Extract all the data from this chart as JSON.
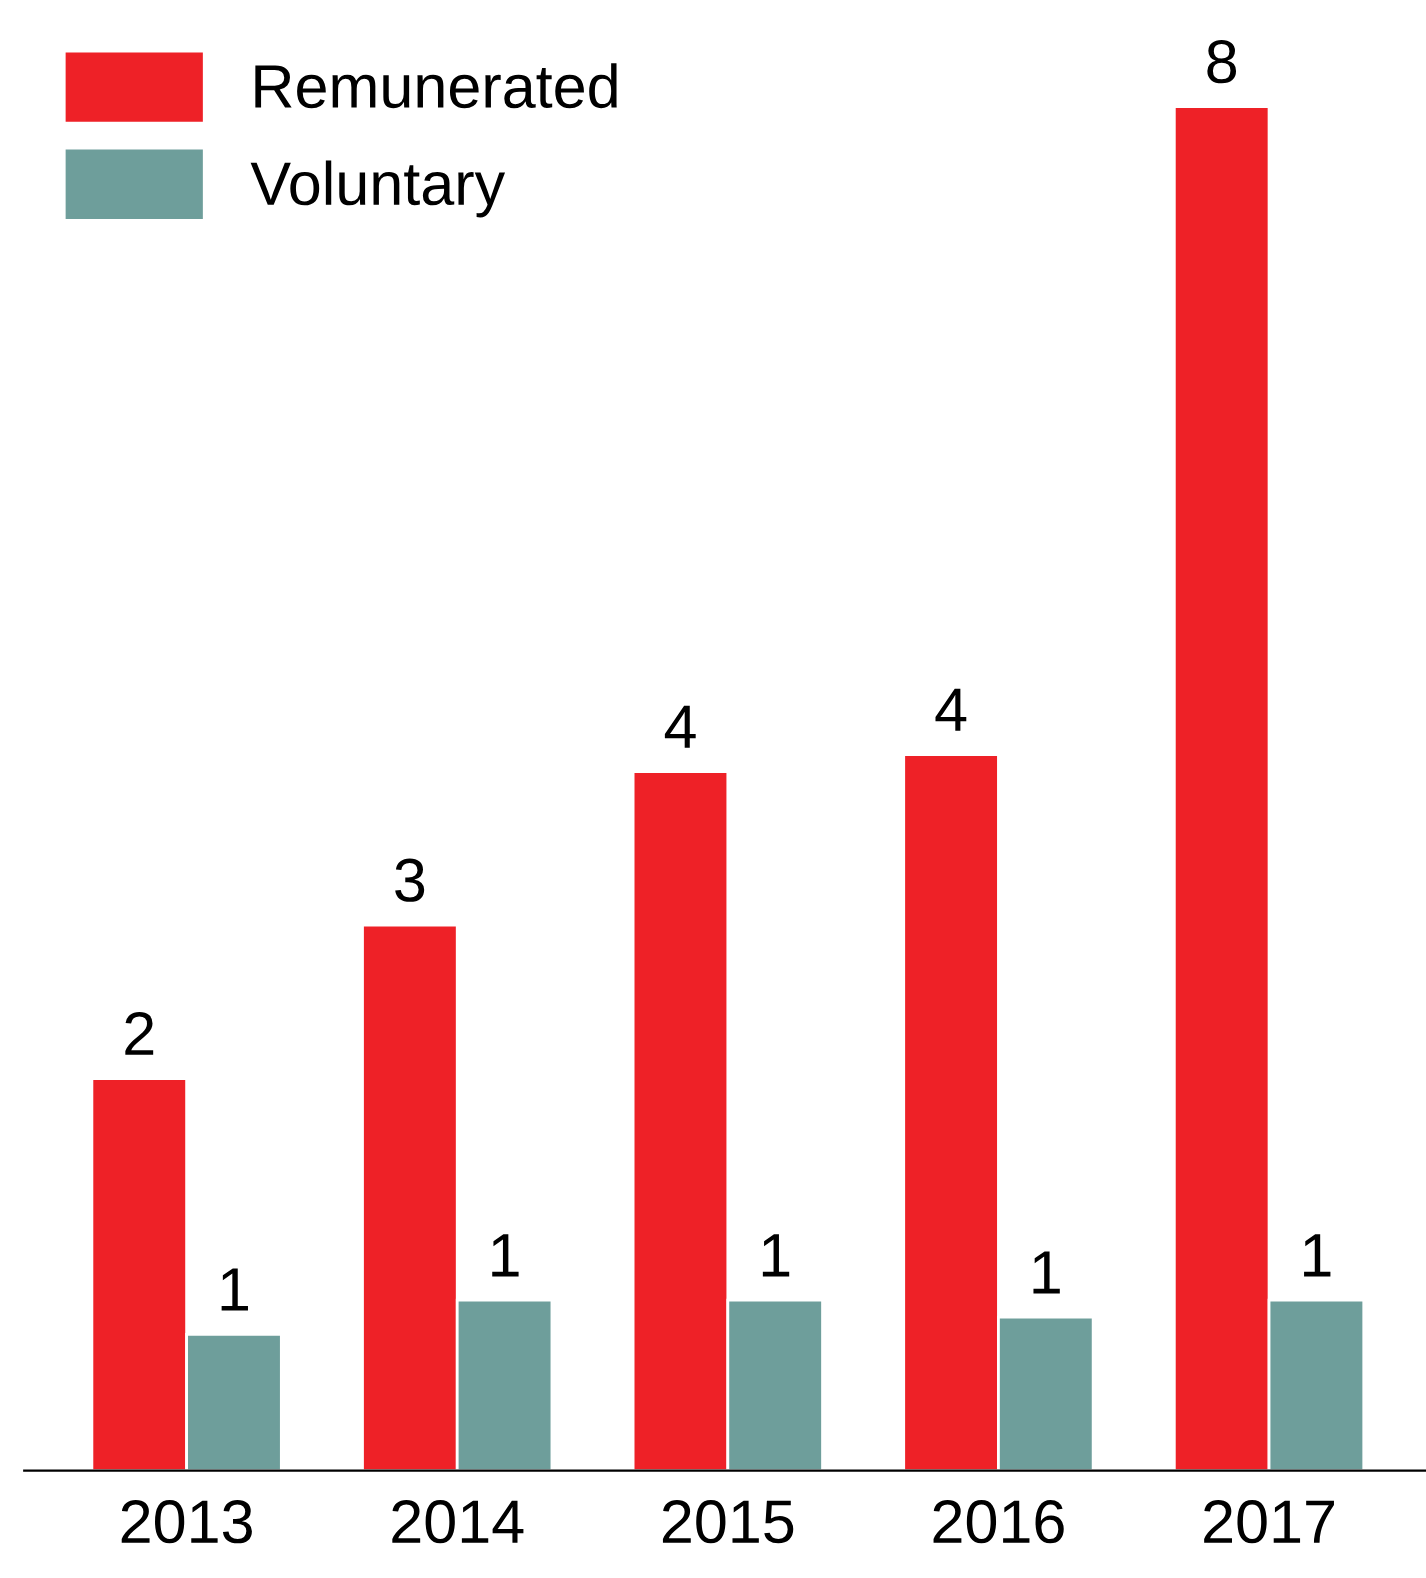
{
  "chart_data": {
    "type": "bar",
    "categories": [
      "2013",
      "2014",
      "2015",
      "2016",
      "2017"
    ],
    "series": [
      {
        "name": "Remunerated",
        "color": "#ee2127",
        "values": [
          2.3,
          3.2,
          4.1,
          4.2,
          8.0
        ],
        "value_labels": [
          "2",
          "3",
          "4",
          "4",
          "8"
        ]
      },
      {
        "name": "Voluntary",
        "color": "#6e9e9b",
        "values": [
          0.8,
          1.0,
          1.0,
          0.9,
          1.0
        ],
        "value_labels": [
          "1",
          "1",
          "1",
          "1",
          "1"
        ]
      }
    ],
    "legend": "top left"
  }
}
